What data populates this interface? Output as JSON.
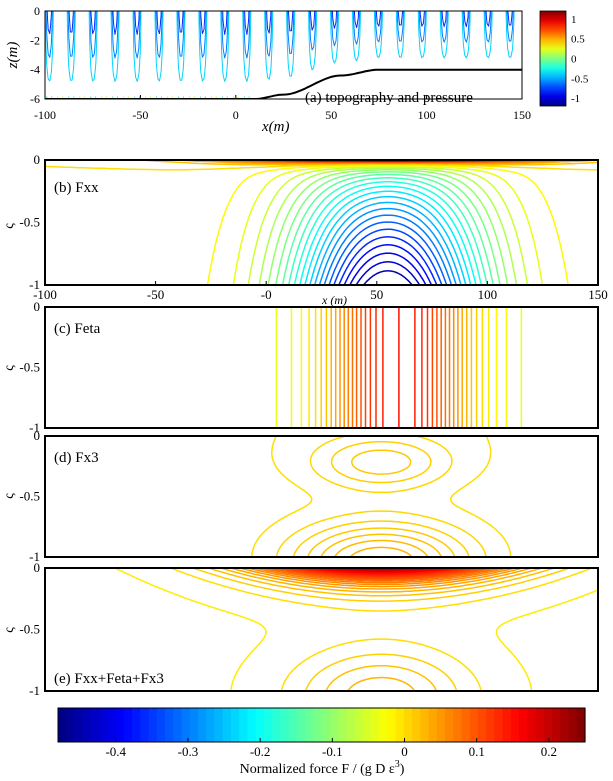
{
  "chart_data": [
    {
      "id": "a",
      "type": "contour",
      "annotation": "(a) topography and pressure",
      "xlabel": "x(m)",
      "ylabel": "z(m)",
      "xlim": [
        -100,
        150
      ],
      "ylim": [
        -6,
        0
      ],
      "xticks": [
        "-100",
        "-50",
        "0",
        "50",
        "100",
        "150"
      ],
      "yticks": [
        "0",
        "-2",
        "-4",
        "-6"
      ],
      "topography": {
        "x": [
          -100,
          10,
          25,
          55,
          75,
          150
        ],
        "z": [
          -6,
          -6,
          -5.7,
          -4.4,
          -4,
          -4
        ]
      },
      "wave_period_m": 11.5,
      "colorbar": {
        "ticks": [
          "1",
          "0.5",
          "0",
          "-0.5",
          "-1"
        ],
        "range": [
          -1.2,
          1.2
        ]
      }
    },
    {
      "id": "b",
      "type": "contour",
      "annotation": "(b) Fxx",
      "ylabel": "ς",
      "xlabel": "x (m)",
      "xlim": [
        -100,
        150
      ],
      "ylim": [
        -1,
        0
      ],
      "xticks": [
        "-100",
        "-50",
        "-0",
        "50",
        "100",
        "150"
      ],
      "yticks": [
        "0",
        "-0.5",
        "-1"
      ],
      "surface_max": 0.25,
      "interior_min": -0.45,
      "levels_step": 0.02
    },
    {
      "id": "c",
      "type": "contour",
      "annotation": "(c) Feta",
      "ylabel": "ς",
      "xlim": [
        -100,
        150
      ],
      "ylim": [
        -1,
        0
      ],
      "yticks": [
        "0",
        "-0.5",
        "-1"
      ],
      "peak_value": 0.2,
      "peak_x": 60,
      "levels_step": 0.01
    },
    {
      "id": "d",
      "type": "contour",
      "annotation": "(d) Fx3",
      "ylabel": "ς",
      "xlim": [
        -100,
        150
      ],
      "ylim": [
        -1,
        0
      ],
      "yticks": [
        "0",
        "-0.5",
        "-1"
      ],
      "upper_max": 0.02,
      "lower_max": 0.04,
      "levels": [
        -0.02,
        -0.01,
        0,
        0.005,
        0.01,
        0.015,
        0.02,
        0.025,
        0.03
      ]
    },
    {
      "id": "e",
      "type": "contour",
      "annotation": "(e) Fxx+Feta+Fx3",
      "ylabel": "ς",
      "xlim": [
        -100,
        150
      ],
      "ylim": [
        -1,
        0
      ],
      "yticks": [
        "0",
        "-0.5",
        "-1"
      ],
      "surface_max": 0.24,
      "lower_max": 0.05,
      "levels_step": 0.01
    }
  ],
  "colorbar": {
    "label": "Normalized force F / (g D ε",
    "label_sup": "3",
    "label_end": ")",
    "range": [
      -0.48,
      0.25
    ],
    "ticks": [
      "-0.4",
      "-0.3",
      "-0.2",
      "-0.1",
      "0",
      "0.1",
      "0.2"
    ],
    "tick_values": [
      -0.4,
      -0.3,
      -0.2,
      -0.1,
      0,
      0.1,
      0.2
    ]
  }
}
